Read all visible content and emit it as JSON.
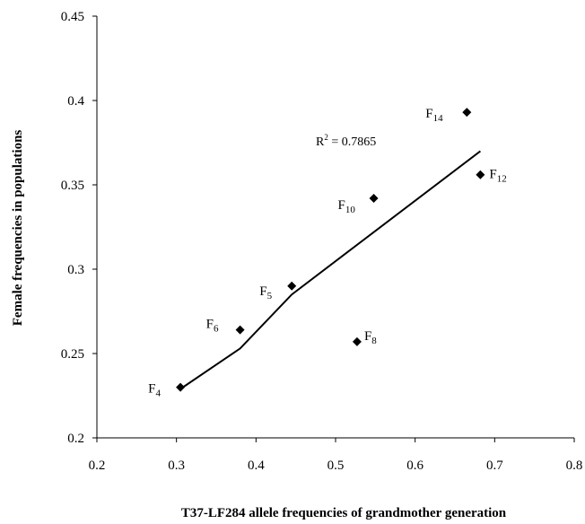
{
  "chart_data": {
    "type": "scatter",
    "title": "",
    "xlabel": "T37-LF284 allele frequencies of grandmother generation",
    "ylabel": "Female frequencies in populations",
    "xlim": [
      0.2,
      0.8
    ],
    "ylim": [
      0.2,
      0.45
    ],
    "xticks": [
      "0.2",
      "0.3",
      "0.4",
      "0.5",
      "0.6",
      "0.7",
      "0.8"
    ],
    "yticks": [
      "0.2",
      "0.25",
      "0.3",
      "0.35",
      "0.4",
      "0.45"
    ],
    "grid": false,
    "legend": "none",
    "marker_color": "#000000",
    "points": [
      {
        "label": "F",
        "sub": "4",
        "x": 0.305,
        "y": 0.23
      },
      {
        "label": "F",
        "sub": "6",
        "x": 0.38,
        "y": 0.264
      },
      {
        "label": "F",
        "sub": "5",
        "x": 0.445,
        "y": 0.29
      },
      {
        "label": "F",
        "sub": "8",
        "x": 0.527,
        "y": 0.257
      },
      {
        "label": "F",
        "sub": "10",
        "x": 0.548,
        "y": 0.342
      },
      {
        "label": "F",
        "sub": "14",
        "x": 0.665,
        "y": 0.393
      },
      {
        "label": "F",
        "sub": "12",
        "x": 0.682,
        "y": 0.356
      }
    ],
    "trendline": {
      "type": "linear",
      "color": "#000000",
      "x_range": [
        0.305,
        0.682
      ],
      "points": [
        [
          0.305,
          0.229
        ],
        [
          0.38,
          0.253
        ],
        [
          0.445,
          0.285
        ],
        [
          0.682,
          0.37
        ]
      ]
    },
    "annotation": {
      "prefix": "R",
      "sup": "2",
      "text": " = 0.7865"
    }
  }
}
